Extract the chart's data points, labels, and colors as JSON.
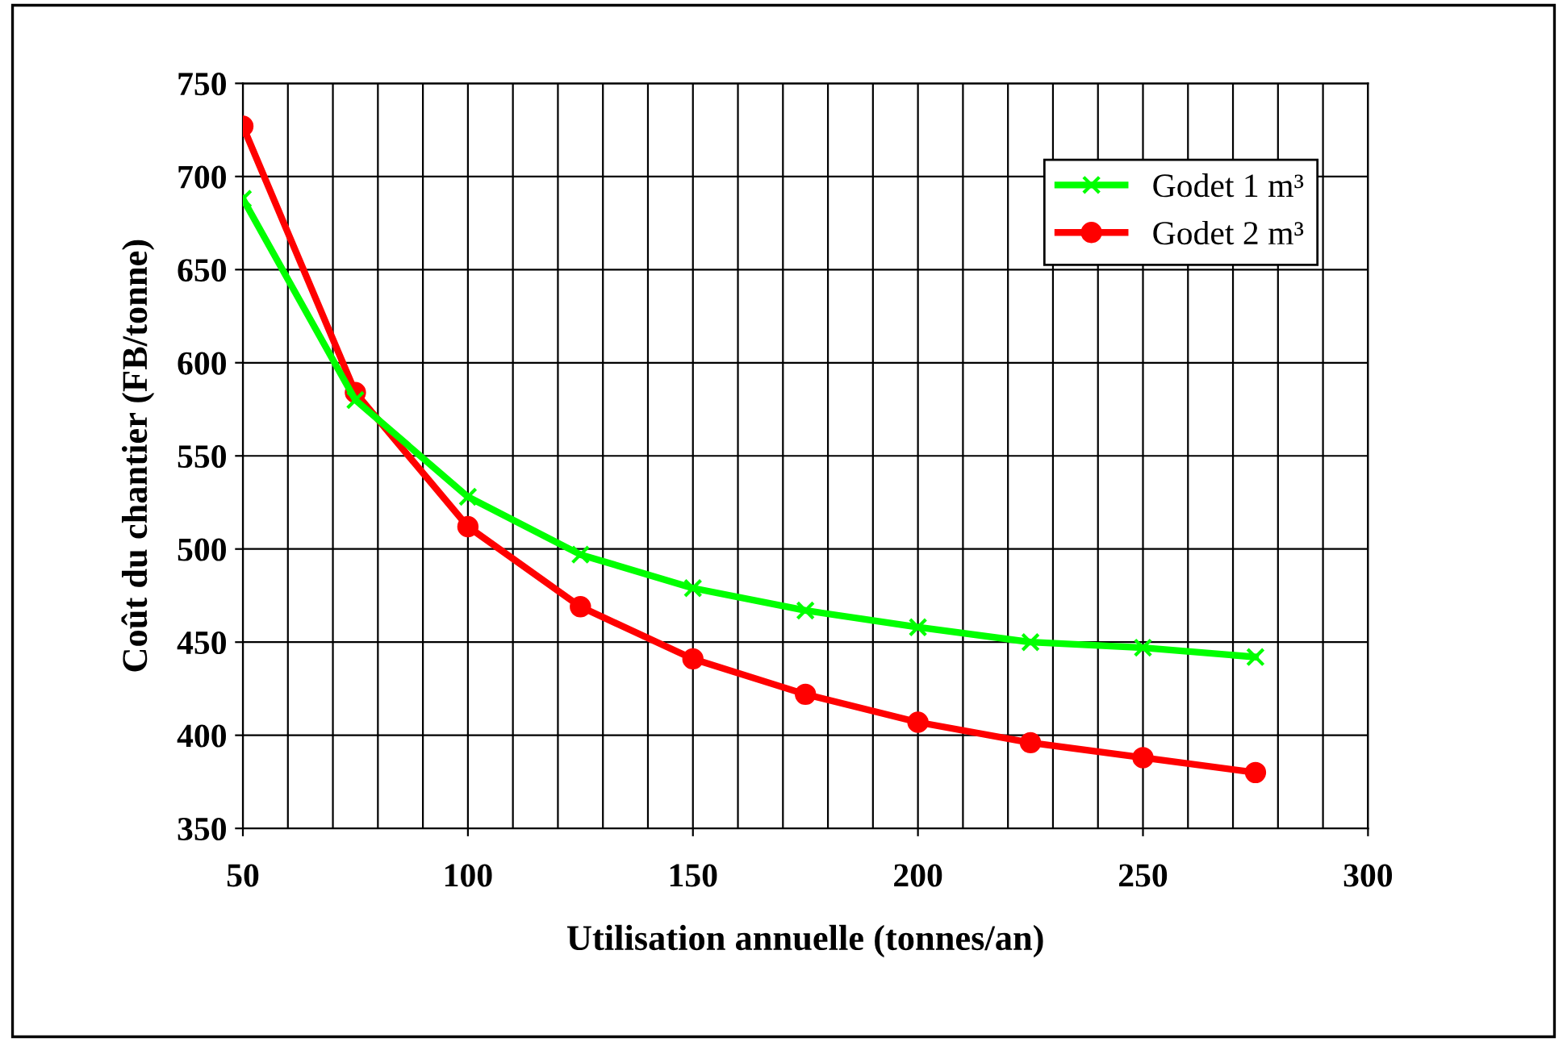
{
  "chart_data": {
    "type": "line",
    "xlabel": "Utilisation annuelle (tonnes/an)",
    "ylabel": "Coût du chantier (FB/tonne)",
    "x": [
      50,
      75,
      100,
      125,
      150,
      175,
      200,
      225,
      250,
      275
    ],
    "series": [
      {
        "name": "Godet 1 m³",
        "color": "#00ff00",
        "marker": "cross",
        "values": [
          688,
          580,
          528,
          497,
          479,
          467,
          458,
          450,
          447,
          442
        ]
      },
      {
        "name": "Godet 2 m³",
        "color": "#ff0000",
        "marker": "circle",
        "values": [
          727,
          584,
          512,
          469,
          441,
          422,
          407,
          396,
          388,
          380
        ]
      }
    ],
    "xlim": [
      50,
      300
    ],
    "xticks": [
      50,
      100,
      150,
      200,
      250,
      300
    ],
    "ylim": [
      350,
      750
    ],
    "yticks": [
      350,
      400,
      450,
      500,
      550,
      600,
      650,
      700,
      750
    ],
    "grid": true,
    "legend": "top right",
    "line_style": "solid"
  }
}
